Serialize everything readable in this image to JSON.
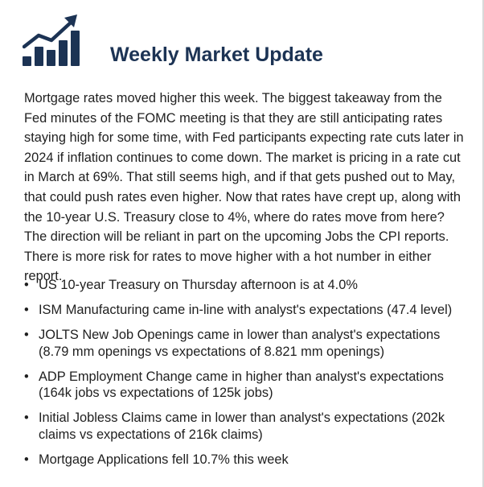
{
  "header": {
    "icon": "rising-bar-chart-icon",
    "title": "Weekly Market Update"
  },
  "intro": "Mortgage rates moved higher this week. The biggest takeaway from the Fed minutes of the FOMC meeting is that they are still anticipating rates staying high for some time, with Fed participants expecting rate cuts later in 2024 if inflation continues to come down. The market is pricing in a rate cut in March at 69%. That still seems high, and if that gets pushed out to May, that could push rates even higher. Now that rates have crept up, along with the 10-year U.S. Treasury close to 4%, where do rates move from here? The direction will be reliant in part on the upcoming Jobs the CPI reports. There is more risk for rates to move higher with a hot number in either report.",
  "bullet_symbol": "•",
  "bullets": [
    "US 10-year Treasury on Thursday afternoon is at 4.0%",
    "ISM Manufacturing came in-line with analyst's expectations (47.4 level)",
    "JOLTS New Job Openings came in lower than analyst's expectations (8.79 mm openings vs expectations of 8.821 mm openings)",
    "ADP Employment Change came in higher than analyst's expectations (164k jobs vs expectations of 125k jobs)",
    "Initial Jobless Claims came in lower than analyst's expectations (202k claims vs expectations of 216k claims)",
    "Mortgage Applications fell 10.7% this week"
  ],
  "colors": {
    "title": "#1c3354",
    "icon": "#1c3354",
    "text": "#1f1f1f"
  }
}
